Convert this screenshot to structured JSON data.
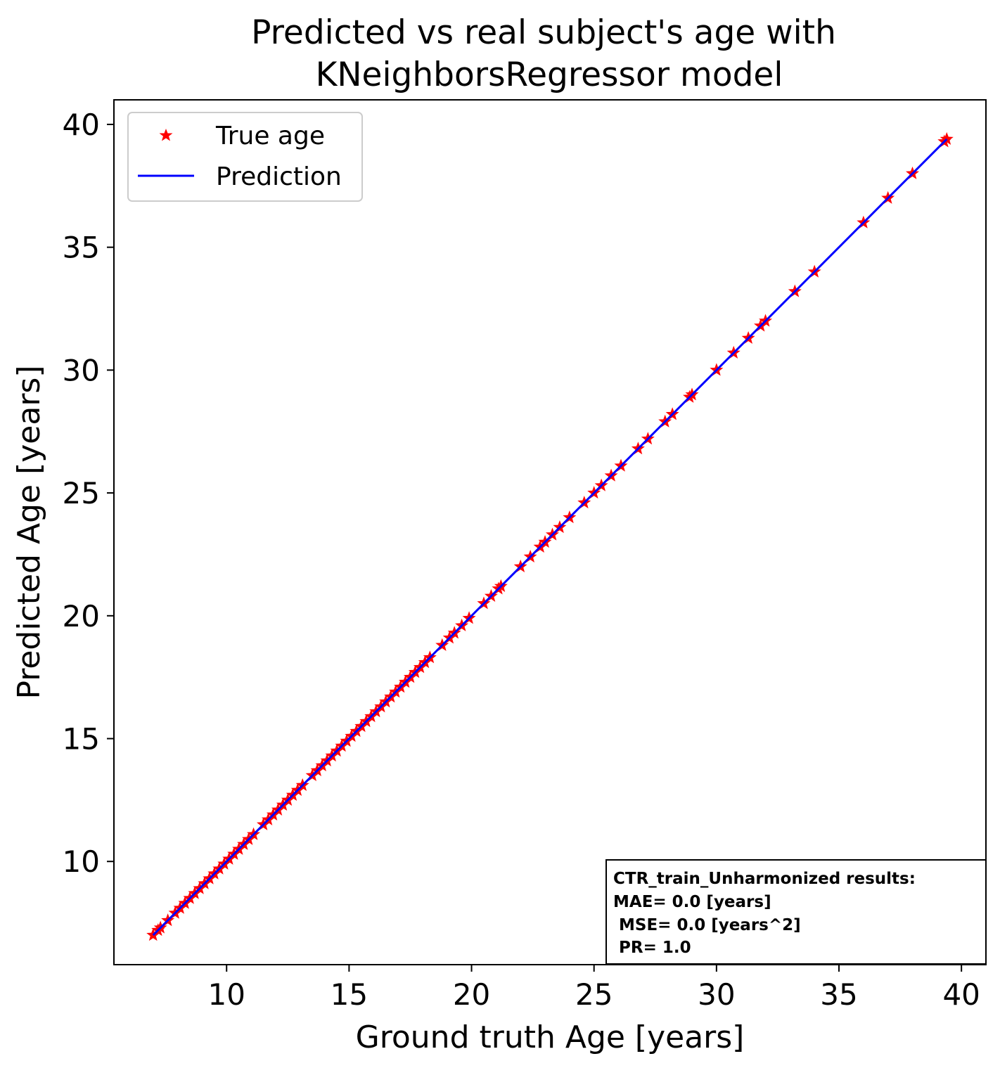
{
  "chart_data": {
    "type": "scatter",
    "title": [
      "Predicted vs real subject's age with",
      "KNeighborsRegressor model"
    ],
    "xlabel": "Ground truth Age [years]",
    "ylabel": "Predicted Age [years]",
    "xlim": [
      5.4,
      41.0
    ],
    "ylim": [
      5.8,
      41.0
    ],
    "xticks": [
      10,
      15,
      20,
      25,
      30,
      35,
      40
    ],
    "yticks": [
      10,
      15,
      20,
      25,
      30,
      35,
      40
    ],
    "grid": false,
    "legend_position": "upper-left",
    "series": [
      {
        "name": "True age",
        "kind": "scatter",
        "marker": "star",
        "color": "#ff0000",
        "x": [
          7.0,
          7.2,
          7.3,
          7.6,
          7.9,
          8.1,
          8.3,
          8.5,
          8.7,
          8.9,
          9.1,
          9.3,
          9.5,
          9.7,
          9.9,
          10.1,
          10.3,
          10.5,
          10.7,
          10.9,
          11.1,
          11.5,
          11.7,
          11.9,
          12.1,
          12.3,
          12.5,
          12.7,
          12.9,
          13.1,
          13.5,
          13.7,
          13.9,
          14.1,
          14.3,
          14.5,
          14.7,
          14.9,
          15.1,
          15.3,
          15.5,
          15.7,
          15.9,
          16.1,
          16.3,
          16.5,
          16.7,
          16.9,
          17.1,
          17.3,
          17.5,
          17.7,
          17.9,
          18.1,
          18.3,
          18.8,
          19.1,
          19.3,
          19.6,
          19.9,
          20.5,
          20.8,
          21.1,
          21.2,
          22.0,
          22.4,
          22.8,
          23.0,
          23.3,
          23.6,
          24.0,
          24.6,
          25.0,
          25.3,
          25.7,
          26.1,
          26.8,
          27.2,
          27.9,
          28.2,
          28.9,
          29.0,
          30.0,
          30.7,
          31.3,
          31.8,
          32.0,
          33.2,
          34.0,
          36.0,
          37.0,
          38.0,
          39.3,
          39.4
        ],
        "y": [
          7.0,
          7.2,
          7.3,
          7.6,
          7.9,
          8.1,
          8.3,
          8.5,
          8.7,
          8.9,
          9.1,
          9.3,
          9.5,
          9.7,
          9.9,
          10.1,
          10.3,
          10.5,
          10.7,
          10.9,
          11.1,
          11.5,
          11.7,
          11.9,
          12.1,
          12.3,
          12.5,
          12.7,
          12.9,
          13.1,
          13.5,
          13.7,
          13.9,
          14.1,
          14.3,
          14.5,
          14.7,
          14.9,
          15.1,
          15.3,
          15.5,
          15.7,
          15.9,
          16.1,
          16.3,
          16.5,
          16.7,
          16.9,
          17.1,
          17.3,
          17.5,
          17.7,
          17.9,
          18.1,
          18.3,
          18.8,
          19.1,
          19.3,
          19.6,
          19.9,
          20.5,
          20.8,
          21.1,
          21.2,
          22.0,
          22.4,
          22.8,
          23.0,
          23.3,
          23.6,
          24.0,
          24.6,
          25.0,
          25.3,
          25.7,
          26.1,
          26.8,
          27.2,
          27.9,
          28.2,
          28.9,
          29.0,
          30.0,
          30.7,
          31.3,
          31.8,
          32.0,
          33.2,
          34.0,
          36.0,
          37.0,
          38.0,
          39.3,
          39.4
        ]
      },
      {
        "name": "Prediction",
        "kind": "line",
        "color": "#0000ff",
        "x": [
          7.0,
          39.4
        ],
        "y": [
          7.0,
          39.4
        ]
      }
    ],
    "annotation": [
      "CTR_train_Unharmonized results:",
      "MAE= 0.0 [years]",
      " MSE= 0.0 [years^2]",
      " PR= 1.0"
    ]
  }
}
